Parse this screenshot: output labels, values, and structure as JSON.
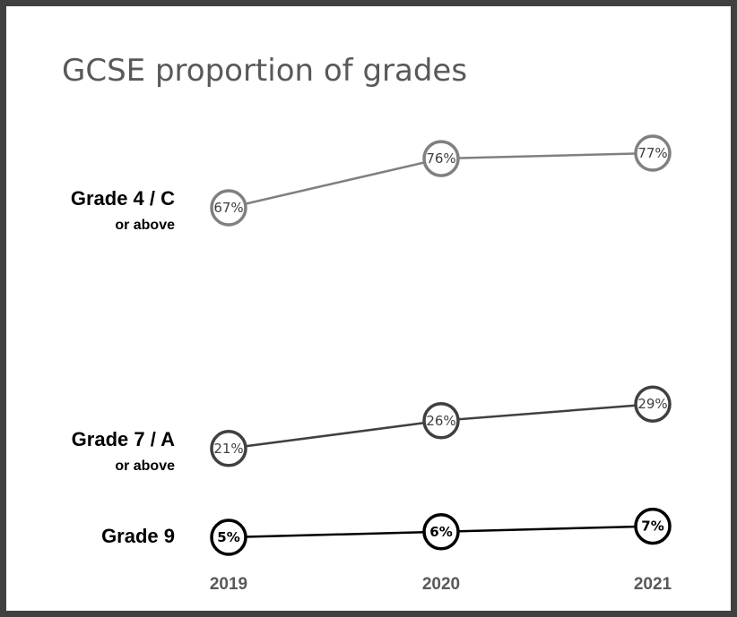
{
  "chart_data": {
    "type": "line",
    "title": "GCSE proportion of grades",
    "x": [
      "2019",
      "2020",
      "2021"
    ],
    "series": [
      {
        "name": "Grade 4 / C",
        "subname": "or above",
        "values": [
          67,
          76,
          77
        ],
        "labels": [
          "67%",
          "76%",
          "77%"
        ],
        "color": "#808080",
        "label_bold": false
      },
      {
        "name": "Grade 7 / A",
        "subname": "or above",
        "values": [
          21,
          26,
          29
        ],
        "labels": [
          "21%",
          "26%",
          "29%"
        ],
        "color": "#404040",
        "label_bold": false
      },
      {
        "name": "Grade 9",
        "subname": "",
        "values": [
          5,
          6,
          7
        ],
        "labels": [
          "5%",
          "6%",
          "7%"
        ],
        "color": "#000000",
        "label_bold": true
      }
    ],
    "xlabel": "",
    "ylabel": "",
    "grid": false,
    "legend": "left"
  }
}
